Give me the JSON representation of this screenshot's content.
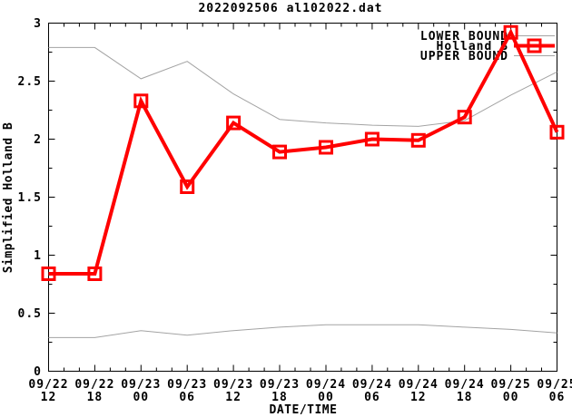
{
  "title": "2022092506 al102022.dat",
  "x_axis": {
    "label": "DATE/TIME",
    "minor_ticks_per_interval": 2
  },
  "y_axis": {
    "label": "Simplified Holland B",
    "minor_step": 0.25
  },
  "legend": {
    "position": "top-right",
    "entries": [
      "LOWER BOUND",
      "Holland B",
      "UPPER BOUND"
    ]
  },
  "colors": {
    "holland_b": "#ff0000",
    "bounds": "#a3a3a3",
    "text": "#000000",
    "frame": "#000000",
    "background": "#ffffff"
  },
  "chart_data": {
    "type": "line",
    "title": "2022092506 al102022.dat",
    "xlabel": "DATE/TIME",
    "ylabel": "Simplified Holland B",
    "ylim": [
      0,
      3
    ],
    "y_tick_values": [
      0,
      0.5,
      1,
      1.5,
      2,
      2.5,
      3
    ],
    "y_tick_labels": [
      "0",
      "0.5",
      "1",
      "1.5",
      "2",
      "2.5",
      "3"
    ],
    "y_minor_step": 0.25,
    "x_minor_per_interval": 2,
    "grid": false,
    "legend_position": "top-right",
    "categories": [
      "09/22 12",
      "09/22 18",
      "09/23 00",
      "09/23 06",
      "09/23 12",
      "09/23 18",
      "09/24 00",
      "09/24 06",
      "09/24 12",
      "09/24 18",
      "09/25 00",
      "09/25 06"
    ],
    "series": [
      {
        "name": "LOWER BOUND",
        "color": "#a3a3a3",
        "line_width": 1,
        "marker": "none",
        "values": [
          0.29,
          0.29,
          0.35,
          0.31,
          0.35,
          0.38,
          0.4,
          0.4,
          0.4,
          0.38,
          0.36,
          0.33
        ]
      },
      {
        "name": "Holland B",
        "color": "#ff0000",
        "line_width": 4,
        "marker": "open-square",
        "values": [
          0.84,
          0.84,
          2.33,
          1.59,
          2.14,
          1.89,
          1.93,
          2.0,
          1.99,
          2.19,
          2.92,
          2.06
        ]
      },
      {
        "name": "UPPER BOUND",
        "color": "#a3a3a3",
        "line_width": 1,
        "marker": "none",
        "values": [
          2.79,
          2.79,
          2.52,
          2.67,
          2.39,
          2.17,
          2.14,
          2.12,
          2.11,
          2.16,
          2.38,
          2.58
        ]
      }
    ]
  }
}
